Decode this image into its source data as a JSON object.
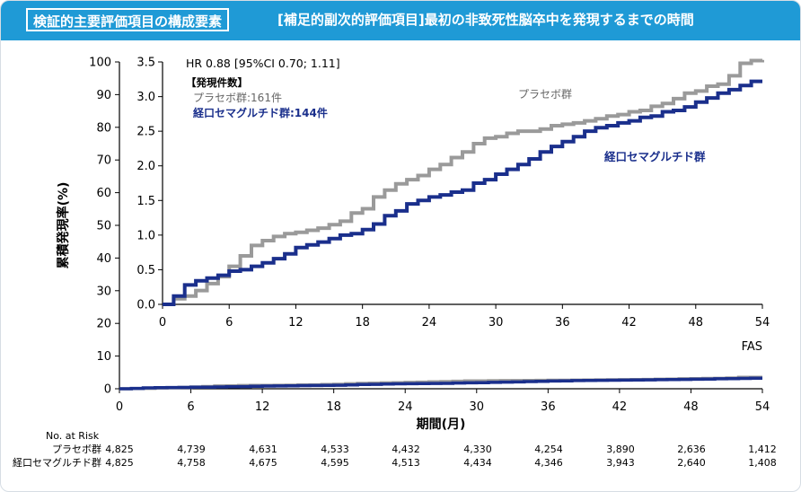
{
  "header": {
    "badge": "検証的主要評価項目の構成要素",
    "title": "[補足的副次的評価項目]最初の非致死性脳卒中を発現するまでの時間"
  },
  "colors": {
    "header_bg": "#1f9ad6",
    "placebo": "#9a9a9a",
    "oral_sema": "#1a2f8c"
  },
  "chart_data": {
    "type": "line",
    "ylabel": "累積発現率(%)",
    "xlabel": "期間(月)",
    "population": "FAS",
    "annotation": {
      "hr": "HR 0.88 [95%CI 0.70; 1.11]",
      "events_title": "【発現件数】",
      "placebo_events": "プラセボ群:161件",
      "sema_events": "経口セマグルチド群:144件"
    },
    "series_labels": {
      "placebo": "プラセボ群",
      "oral_sema": "経口セマグルチド群"
    },
    "x_ticks": [
      "0",
      "6",
      "12",
      "18",
      "24",
      "30",
      "36",
      "42",
      "48",
      "54"
    ],
    "xlim": [
      0,
      54
    ],
    "main_y_ticks": [
      "0",
      "10",
      "20",
      "30",
      "40",
      "50",
      "60",
      "70",
      "80",
      "90",
      "100"
    ],
    "ylim": [
      0,
      100
    ],
    "inset_y_ticks": [
      "0.0",
      "0.5",
      "1.0",
      "1.5",
      "2.0",
      "2.5",
      "3.0",
      "3.5"
    ],
    "inset_ylim": [
      0,
      3.5
    ],
    "series": [
      {
        "name": "プラセボ群",
        "x": [
          0,
          1,
          2,
          3,
          4,
          5,
          6,
          7,
          8,
          9,
          10,
          11,
          12,
          13,
          14,
          15,
          16,
          17,
          18,
          19,
          20,
          21,
          22,
          23,
          24,
          25,
          26,
          27,
          28,
          29,
          30,
          31,
          32,
          33,
          34,
          35,
          36,
          37,
          38,
          39,
          40,
          41,
          42,
          43,
          44,
          45,
          46,
          47,
          48,
          49,
          50,
          51,
          52,
          53,
          54
        ],
        "y": [
          0.0,
          0.08,
          0.12,
          0.2,
          0.3,
          0.4,
          0.55,
          0.7,
          0.85,
          0.92,
          0.98,
          1.02,
          1.04,
          1.07,
          1.1,
          1.15,
          1.2,
          1.32,
          1.38,
          1.55,
          1.65,
          1.74,
          1.8,
          1.86,
          1.95,
          2.02,
          2.12,
          2.2,
          2.32,
          2.4,
          2.42,
          2.47,
          2.5,
          2.5,
          2.53,
          2.58,
          2.6,
          2.62,
          2.65,
          2.68,
          2.72,
          2.74,
          2.78,
          2.8,
          2.86,
          2.9,
          2.97,
          3.05,
          3.08,
          3.15,
          3.18,
          3.3,
          3.48,
          3.52,
          3.53
        ]
      },
      {
        "name": "経口セマグルチド群",
        "x": [
          0,
          1,
          2,
          3,
          4,
          5,
          6,
          7,
          8,
          9,
          10,
          11,
          12,
          13,
          14,
          15,
          16,
          17,
          18,
          19,
          20,
          21,
          22,
          23,
          24,
          25,
          26,
          27,
          28,
          29,
          30,
          31,
          32,
          33,
          34,
          35,
          36,
          37,
          38,
          39,
          40,
          41,
          42,
          43,
          44,
          45,
          46,
          47,
          48,
          49,
          50,
          51,
          52,
          53,
          54
        ],
        "y": [
          0.0,
          0.12,
          0.28,
          0.34,
          0.38,
          0.42,
          0.48,
          0.5,
          0.55,
          0.6,
          0.66,
          0.73,
          0.82,
          0.86,
          0.9,
          0.95,
          1.0,
          1.02,
          1.08,
          1.16,
          1.28,
          1.35,
          1.45,
          1.5,
          1.55,
          1.58,
          1.62,
          1.65,
          1.75,
          1.8,
          1.88,
          1.95,
          2.02,
          2.1,
          2.2,
          2.28,
          2.35,
          2.42,
          2.5,
          2.55,
          2.58,
          2.62,
          2.65,
          2.7,
          2.72,
          2.78,
          2.8,
          2.85,
          2.92,
          2.98,
          3.05,
          3.1,
          3.16,
          3.22,
          3.22
        ]
      }
    ],
    "risk_table": {
      "title": "No. at Risk",
      "rows": [
        {
          "label": "プラセボ群",
          "values": [
            "4,825",
            "4,739",
            "4,631",
            "4,533",
            "4,432",
            "4,330",
            "4,254",
            "3,890",
            "2,636",
            "1,412"
          ]
        },
        {
          "label": "経口セマグルチド群",
          "values": [
            "4,825",
            "4,758",
            "4,675",
            "4,595",
            "4,513",
            "4,434",
            "4,346",
            "3,943",
            "2,640",
            "1,408"
          ]
        }
      ]
    }
  }
}
